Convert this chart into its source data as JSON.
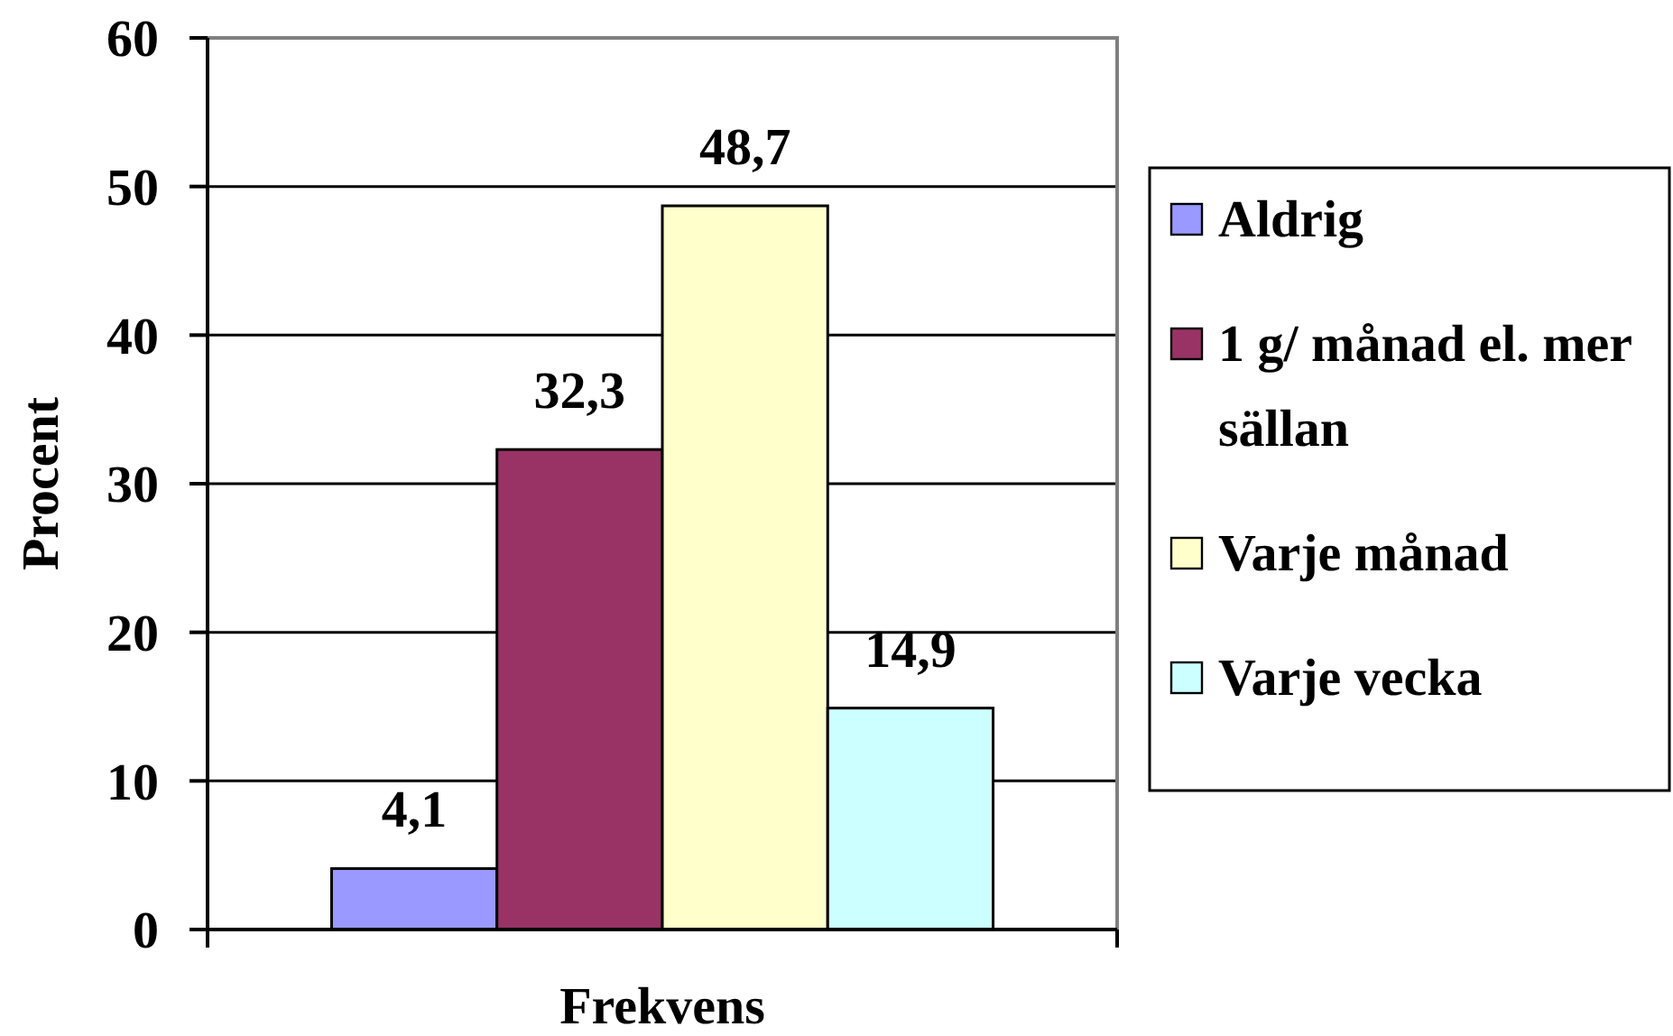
{
  "chart_data": {
    "type": "bar",
    "categories": [
      null
    ],
    "xlabel": "Frekvens",
    "ylabel": "Procent",
    "ylim": [
      0,
      60
    ],
    "yticks": [
      0,
      10,
      20,
      30,
      40,
      50,
      60
    ],
    "grid": "y",
    "legend": "right",
    "series": [
      {
        "name": "Aldrig",
        "color": "#9999ff",
        "values": [
          4.1
        ],
        "value_labels": [
          "4,1"
        ]
      },
      {
        "name": "1 g/ månad el. mer sällan",
        "color": "#993366",
        "values": [
          32.3
        ],
        "value_labels": [
          "32,3"
        ]
      },
      {
        "name": "Varje månad",
        "color": "#ffffcc",
        "values": [
          48.7
        ],
        "value_labels": [
          "48,7"
        ]
      },
      {
        "name": "Varje vecka",
        "color": "#ccffff",
        "values": [
          14.9
        ],
        "value_labels": [
          "14,9"
        ]
      }
    ]
  }
}
